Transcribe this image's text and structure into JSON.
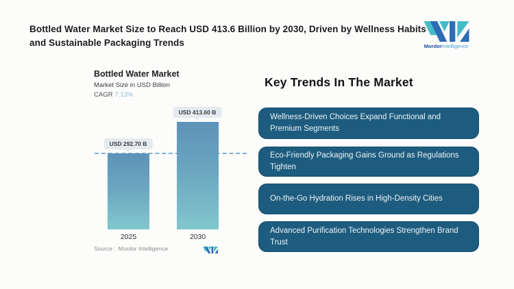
{
  "header": {
    "title": "Bottled Water Market Size to Reach USD 413.6 Billion by 2030, Driven by Wellness Habits and Sustainable Packaging Trends",
    "brand": {
      "name_bold": "Mordor",
      "name_light": "Intelligence",
      "logo_icon": "mordor-intelligence-monogram"
    }
  },
  "chart": {
    "title": "Bottled Water Market",
    "subtitle": "Market Size in USD Billion",
    "cagr_label": "CAGR",
    "cagr_value": "7.13%",
    "source_label": "Source :",
    "source_name": "Mordor Intelligence"
  },
  "chart_data": {
    "type": "bar",
    "title": "Bottled Water Market",
    "subtitle": "Market Size in USD Billion",
    "cagr_percent": 7.13,
    "categories": [
      "2025",
      "2030"
    ],
    "values": [
      292.7,
      413.6
    ],
    "value_labels": [
      "USD 292.70 B",
      "USD 413.60 B"
    ],
    "unit": "USD Billion",
    "ylim": [
      0,
      440
    ],
    "grid": false,
    "legend": "none",
    "reference_line_value": 292.7,
    "reference_line_style": "dashed"
  },
  "trends": {
    "heading": "Key Trends In The Market",
    "items": [
      "Wellness-Driven Choices Expand Functional and Premium Segments",
      "Eco-Friendly Packaging Gains Ground as Regulations Tighten",
      "On-the-Go Hydration Rises in High-Density Cities",
      "Advanced Purification Technologies Strengthen Brand Trust"
    ]
  },
  "colors": {
    "bar_gradient_top": "#5e92b8",
    "bar_gradient_bottom": "#82c7ce",
    "reference_line": "#7fb0d6",
    "value_pill_bg": "#e4eaee",
    "trend_box_bg": "#1d5c7e",
    "cagr_value_text": "#92b9d8",
    "brand_blue": "#2e6cb5",
    "brand_teal": "#45bcc8"
  }
}
